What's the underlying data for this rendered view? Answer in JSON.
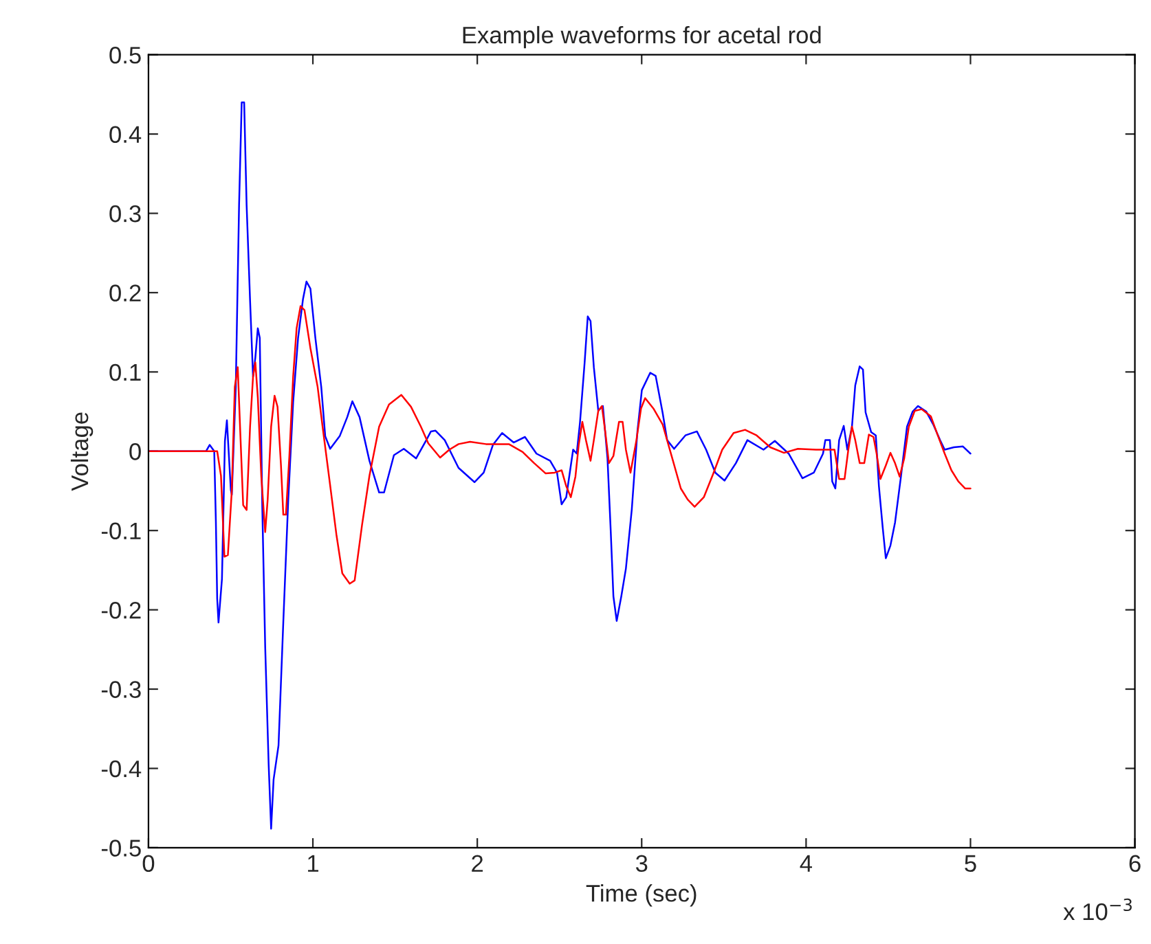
{
  "chart_data": {
    "type": "line",
    "title": "Example waveforms for acetal rod",
    "xlabel": "Time (sec)",
    "ylabel": "Voltage",
    "annotations": [
      "x 10$^{−3}$"
    ],
    "xlim": [
      0,
      6
    ],
    "xticks": [
      0,
      1,
      2,
      3,
      4,
      5,
      6
    ],
    "ylim": [
      -0.5,
      0.5
    ],
    "yticks": [
      -0.5,
      -0.4,
      -0.3,
      -0.2,
      -0.1,
      0,
      0.1,
      0.2,
      0.3,
      0.4,
      0.5
    ],
    "grid": false,
    "legend": false,
    "marker": "none",
    "line_style": "solid",
    "series": [
      {
        "color": "#0000ff",
        "x": [
          0,
          0.35,
          0.372,
          0.4,
          0.41,
          0.418,
          0.426,
          0.447,
          0.465,
          0.477,
          0.501,
          0.507,
          0.531,
          0.551,
          0.567,
          0.582,
          0.597,
          0.618,
          0.636,
          0.65,
          0.665,
          0.677,
          0.692,
          0.71,
          0.731,
          0.746,
          0.761,
          0.791,
          0.82,
          0.85,
          0.88,
          0.91,
          0.94,
          0.961,
          0.985,
          1.015,
          1.051,
          1.075,
          1.105,
          1.163,
          1.209,
          1.24,
          1.284,
          1.344,
          1.403,
          1.433,
          1.493,
          1.553,
          1.628,
          1.687,
          1.718,
          1.746,
          1.802,
          1.886,
          1.983,
          2.039,
          2.095,
          2.151,
          2.221,
          2.29,
          2.36,
          2.443,
          2.485,
          2.513,
          2.541,
          2.583,
          2.605,
          2.625,
          2.653,
          2.672,
          2.689,
          2.709,
          2.736,
          2.764,
          2.792,
          2.812,
          2.828,
          2.848,
          2.876,
          2.904,
          2.94,
          2.974,
          3.001,
          3.052,
          3.085,
          3.127,
          3.155,
          3.197,
          3.266,
          3.336,
          3.392,
          3.448,
          3.504,
          3.573,
          3.643,
          3.741,
          3.81,
          3.894,
          3.978,
          4.047,
          4.103,
          4.117,
          4.145,
          4.159,
          4.178,
          4.201,
          4.229,
          4.251,
          4.279,
          4.299,
          4.326,
          4.346,
          4.362,
          4.396,
          4.424,
          4.443,
          4.466,
          4.485,
          4.513,
          4.541,
          4.577,
          4.614,
          4.648,
          4.681,
          4.731,
          4.773,
          4.815,
          4.843,
          4.899,
          4.954,
          5.0
        ],
        "values": [
          0,
          0,
          0.008,
          0,
          -0.089,
          -0.186,
          -0.216,
          -0.161,
          0.013,
          0.039,
          -0.049,
          -0.055,
          0.081,
          0.31,
          0.44,
          0.44,
          0.31,
          0.19,
          0.094,
          0.118,
          0.155,
          0.143,
          -0.068,
          -0.247,
          -0.395,
          -0.476,
          -0.414,
          -0.371,
          -0.216,
          -0.062,
          0.062,
          0.143,
          0.192,
          0.214,
          0.205,
          0.143,
          0.081,
          0.019,
          0.003,
          0.019,
          0.043,
          0.063,
          0.043,
          -0.012,
          -0.052,
          -0.052,
          -0.005,
          0.003,
          -0.009,
          0.013,
          0.025,
          0.026,
          0.014,
          -0.021,
          -0.039,
          -0.027,
          0.008,
          0.023,
          0.011,
          0.018,
          -0.003,
          -0.012,
          -0.027,
          -0.067,
          -0.058,
          0.002,
          -0.003,
          0.037,
          0.112,
          0.17,
          0.164,
          0.106,
          0.051,
          0.057,
          -0.009,
          -0.102,
          -0.183,
          -0.214,
          -0.183,
          -0.148,
          -0.073,
          0.025,
          0.077,
          0.099,
          0.095,
          0.049,
          0.014,
          0.003,
          0.02,
          0.025,
          0.002,
          -0.027,
          -0.037,
          -0.015,
          0.014,
          0.002,
          0.013,
          -0.003,
          -0.034,
          -0.027,
          -0.003,
          0.014,
          0.014,
          -0.038,
          -0.047,
          0.014,
          0.032,
          0.002,
          0.031,
          0.083,
          0.107,
          0.103,
          0.049,
          0.024,
          0.02,
          -0.044,
          -0.096,
          -0.135,
          -0.119,
          -0.09,
          -0.032,
          0.031,
          0.05,
          0.057,
          0.05,
          0.034,
          0.014,
          0.002,
          0.005,
          0.006,
          -0.003
        ]
      },
      {
        "color": "#ff0000",
        "x": [
          0,
          0.418,
          0.441,
          0.462,
          0.483,
          0.507,
          0.525,
          0.543,
          0.557,
          0.576,
          0.597,
          0.618,
          0.636,
          0.65,
          0.665,
          0.686,
          0.71,
          0.725,
          0.746,
          0.767,
          0.785,
          0.806,
          0.82,
          0.836,
          0.857,
          0.88,
          0.901,
          0.925,
          0.949,
          0.985,
          1.029,
          1.059,
          1.105,
          1.143,
          1.179,
          1.224,
          1.254,
          1.299,
          1.344,
          1.403,
          1.463,
          1.538,
          1.597,
          1.657,
          1.702,
          1.774,
          1.83,
          1.886,
          1.956,
          2.053,
          2.192,
          2.276,
          2.346,
          2.416,
          2.471,
          2.513,
          2.541,
          2.569,
          2.597,
          2.617,
          2.639,
          2.661,
          2.689,
          2.709,
          2.736,
          2.758,
          2.778,
          2.801,
          2.828,
          2.862,
          2.884,
          2.904,
          2.932,
          2.968,
          2.996,
          3.021,
          3.071,
          3.127,
          3.182,
          3.238,
          3.28,
          3.322,
          3.378,
          3.434,
          3.49,
          3.559,
          3.629,
          3.699,
          3.782,
          3.866,
          3.95,
          4.061,
          4.173,
          4.201,
          4.234,
          4.257,
          4.279,
          4.299,
          4.326,
          4.354,
          4.382,
          4.41,
          4.429,
          4.452,
          4.485,
          4.513,
          4.541,
          4.569,
          4.597,
          4.625,
          4.661,
          4.703,
          4.759,
          4.801,
          4.843,
          4.884,
          4.926,
          4.968,
          5.0
        ],
        "values": [
          0,
          0,
          -0.031,
          -0.133,
          -0.131,
          -0.049,
          0.081,
          0.106,
          0.031,
          -0.068,
          -0.074,
          0.031,
          0.094,
          0.112,
          0.068,
          -0.031,
          -0.102,
          -0.061,
          0.031,
          0.07,
          0.056,
          -0.018,
          -0.08,
          -0.08,
          -0.006,
          0.094,
          0.155,
          0.183,
          0.178,
          0.13,
          0.081,
          0.031,
          -0.043,
          -0.105,
          -0.154,
          -0.167,
          -0.163,
          -0.093,
          -0.031,
          0.031,
          0.059,
          0.071,
          0.056,
          0.031,
          0.01,
          -0.008,
          0.002,
          0.009,
          0.012,
          0.009,
          0.009,
          -0.001,
          -0.015,
          -0.028,
          -0.027,
          -0.024,
          -0.044,
          -0.058,
          -0.032,
          0.008,
          0.037,
          0.014,
          -0.012,
          0.014,
          0.051,
          0.057,
          0.025,
          -0.015,
          -0.006,
          0.037,
          0.037,
          0.002,
          -0.027,
          0.014,
          0.054,
          0.067,
          0.054,
          0.034,
          -0.006,
          -0.047,
          -0.061,
          -0.07,
          -0.058,
          -0.029,
          0.002,
          0.023,
          0.027,
          0.02,
          0.005,
          -0.002,
          0.003,
          0.002,
          0.002,
          -0.035,
          -0.035,
          0.002,
          0.031,
          0.014,
          -0.015,
          -0.015,
          0.021,
          0.018,
          -0.003,
          -0.035,
          -0.018,
          -0.002,
          -0.015,
          -0.032,
          -0.009,
          0.031,
          0.051,
          0.053,
          0.044,
          0.02,
          -0.003,
          -0.024,
          -0.038,
          -0.047,
          -0.047
        ]
      }
    ]
  }
}
